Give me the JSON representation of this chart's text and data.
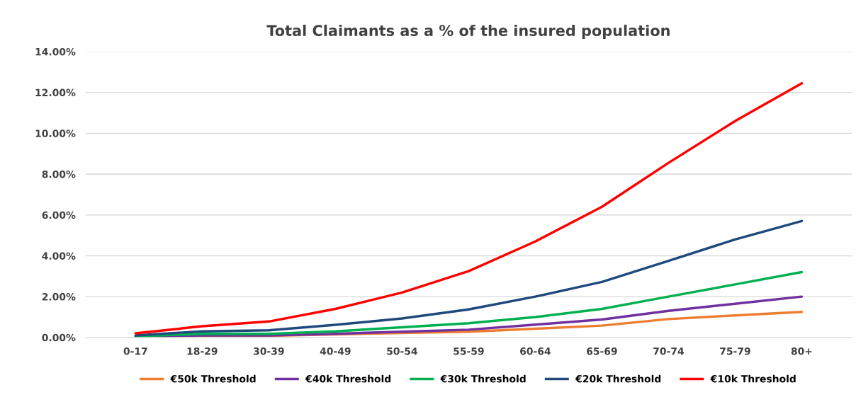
{
  "chart_data": {
    "type": "line",
    "title": "Total Claimants as a % of the insured population",
    "categories": [
      "0-17",
      "18-29",
      "30-39",
      "40-49",
      "50-54",
      "55-59",
      "60-64",
      "65-69",
      "70-74",
      "75-79",
      "80+"
    ],
    "series": [
      {
        "name": "€50k Threshold",
        "color": "#ed7d31",
        "values": [
          0.02,
          0.08,
          0.08,
          0.15,
          0.22,
          0.28,
          0.43,
          0.58,
          0.9,
          1.08,
          1.25
        ]
      },
      {
        "name": "€40k Threshold",
        "color": "#7030a0",
        "values": [
          0.03,
          0.1,
          0.1,
          0.18,
          0.28,
          0.38,
          0.63,
          0.88,
          1.3,
          1.65,
          2.0
        ]
      },
      {
        "name": "€30k Threshold",
        "color": "#00b050",
        "values": [
          0.05,
          0.18,
          0.18,
          0.3,
          0.5,
          0.7,
          1.0,
          1.4,
          2.0,
          2.6,
          3.2
        ]
      },
      {
        "name": "€20k Threshold",
        "color": "#1f497d",
        "values": [
          0.1,
          0.3,
          0.35,
          0.62,
          0.93,
          1.37,
          2.0,
          2.72,
          3.75,
          4.8,
          5.7
        ]
      },
      {
        "name": "€10k Threshold",
        "color": "#ff0000",
        "values": [
          0.2,
          0.55,
          0.78,
          1.4,
          2.2,
          3.25,
          4.7,
          6.4,
          8.55,
          10.6,
          12.45
        ]
      }
    ],
    "ylim": [
      0,
      14
    ],
    "yticks": [
      {
        "value": 0,
        "label": "0.00%"
      },
      {
        "value": 2,
        "label": "2.00%"
      },
      {
        "value": 4,
        "label": "4.00%"
      },
      {
        "value": 6,
        "label": "6.00%"
      },
      {
        "value": 8,
        "label": "8.00%"
      },
      {
        "value": 10,
        "label": "10.00%"
      },
      {
        "value": 12,
        "label": "12.00%"
      },
      {
        "value": 14,
        "label": "14.00%"
      }
    ],
    "grid": "y",
    "legend": "bottom",
    "marker": "none",
    "line_style": "solid"
  }
}
